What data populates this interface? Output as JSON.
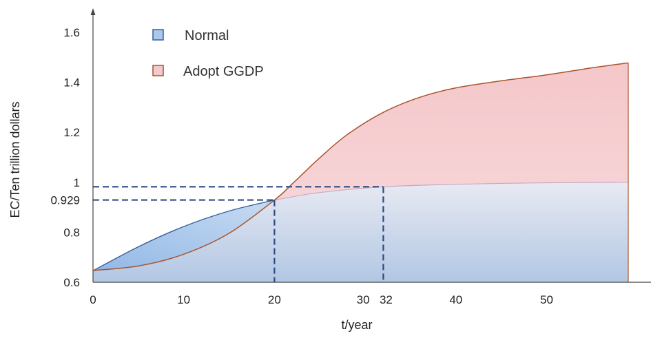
{
  "chart_data": {
    "type": "area",
    "title": "",
    "xlabel": "t/year",
    "ylabel": "EC/Ten trillion dollars",
    "xlim": [
      0,
      59
    ],
    "ylim": [
      0.6,
      1.6
    ],
    "x_ticks": [
      "0",
      "10",
      "20",
      "30",
      "32",
      "40",
      "50"
    ],
    "y_ticks": [
      "0.6",
      "0.8",
      "0.929",
      "1",
      "1.2",
      "1.4",
      "1.6"
    ],
    "legend": "top-left",
    "grid": false,
    "series": [
      {
        "name": "Normal",
        "color": "#3a5f9e",
        "fill": "#a9c8ea",
        "x": [
          0,
          5,
          10,
          15,
          20,
          25,
          32,
          40,
          50,
          59
        ],
        "values": [
          0.646,
          0.742,
          0.823,
          0.885,
          0.929,
          0.959,
          0.982,
          0.992,
          0.998,
          1.0
        ]
      },
      {
        "name": "Adopt GGDP",
        "color": "#a8542a",
        "fill": "#f2c9cc",
        "x": [
          0,
          5,
          10,
          15,
          20,
          22,
          25,
          28,
          32,
          36,
          40,
          45,
          50,
          55,
          59
        ],
        "values": [
          0.647,
          0.665,
          0.712,
          0.796,
          0.929,
          0.995,
          1.098,
          1.19,
          1.28,
          1.34,
          1.378,
          1.406,
          1.43,
          1.458,
          1.478
        ]
      }
    ],
    "annotations": [
      {
        "label": "0.929",
        "x": 20,
        "y": 0.929,
        "style": "dashed",
        "color": "#2d4a86"
      },
      {
        "label": "32",
        "x": 32,
        "y": 0.982,
        "style": "dashed",
        "color": "#2d4a86"
      }
    ]
  }
}
